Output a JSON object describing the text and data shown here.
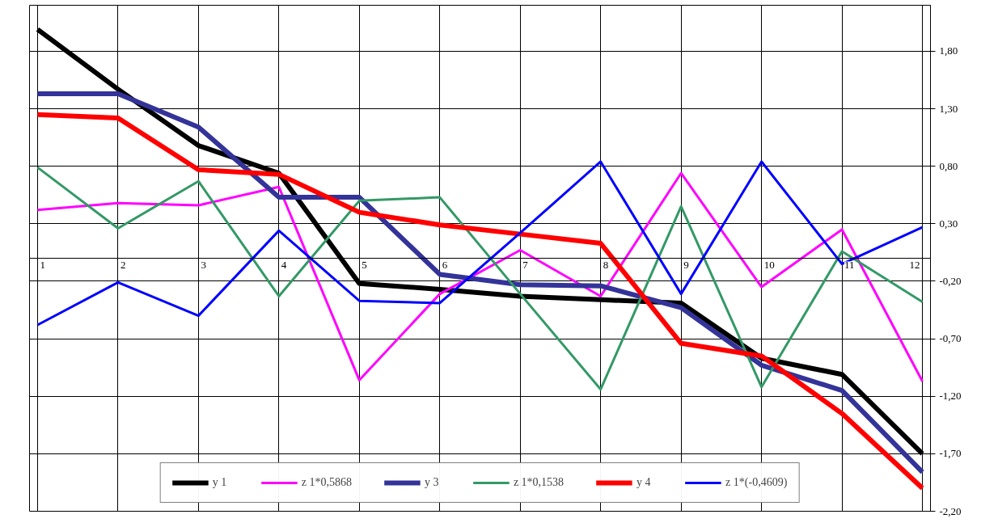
{
  "chart_data": {
    "type": "line",
    "categories": [
      "1",
      "2",
      "3",
      "4",
      "5",
      "6",
      "7",
      "8",
      "9",
      "10",
      "11",
      "12"
    ],
    "series": [
      {
        "name": "y 1",
        "color": "#000000",
        "values": [
          1.99,
          1.47,
          0.98,
          0.74,
          -0.22,
          -0.27,
          -0.33,
          -0.36,
          -0.39,
          -0.87,
          -1.01,
          -1.7
        ]
      },
      {
        "name": "z 1*0,5868",
        "color": "#ff00ff",
        "values": [
          0.42,
          0.48,
          0.46,
          0.62,
          -1.06,
          -0.31,
          0.07,
          -0.33,
          0.74,
          -0.25,
          0.25,
          -1.07
        ]
      },
      {
        "name": "y 3",
        "color": "#333399",
        "values": [
          1.43,
          1.43,
          1.14,
          0.53,
          0.53,
          -0.14,
          -0.23,
          -0.24,
          -0.43,
          -0.93,
          -1.15,
          -1.86
        ]
      },
      {
        "name": "z 1*0,1538",
        "color": "#339966",
        "values": [
          0.79,
          0.26,
          0.67,
          -0.33,
          0.5,
          0.53,
          -0.31,
          -1.14,
          0.45,
          -1.12,
          0.06,
          -0.38
        ]
      },
      {
        "name": "y 4",
        "color": "#ff0000",
        "values": [
          1.25,
          1.22,
          0.77,
          0.73,
          0.4,
          0.29,
          0.21,
          0.13,
          -0.74,
          -0.85,
          -1.35,
          -2.0
        ]
      },
      {
        "name": "z 1*(-0,4609)",
        "color": "#0000ff",
        "values": [
          -0.58,
          -0.21,
          -0.5,
          0.24,
          -0.37,
          -0.39,
          0.22,
          0.84,
          -0.31,
          0.84,
          -0.05,
          0.27
        ]
      }
    ],
    "ylim": [
      -2.2,
      2.2
    ],
    "yticks": [
      {
        "value": -2.2,
        "label": "-2,20"
      },
      {
        "value": -1.7,
        "label": "-1,70"
      },
      {
        "value": -1.2,
        "label": "-1,20"
      },
      {
        "value": -0.7,
        "label": "-0,70"
      },
      {
        "value": -0.2,
        "label": "-0,20"
      },
      {
        "value": 0.3,
        "label": "0,30"
      },
      {
        "value": 0.8,
        "label": "0,80"
      },
      {
        "value": 1.3,
        "label": "1,30"
      },
      {
        "value": 1.8,
        "label": "1,80"
      }
    ],
    "grid": true,
    "legend": "bottom",
    "marker": "none",
    "line_style": "solid"
  }
}
